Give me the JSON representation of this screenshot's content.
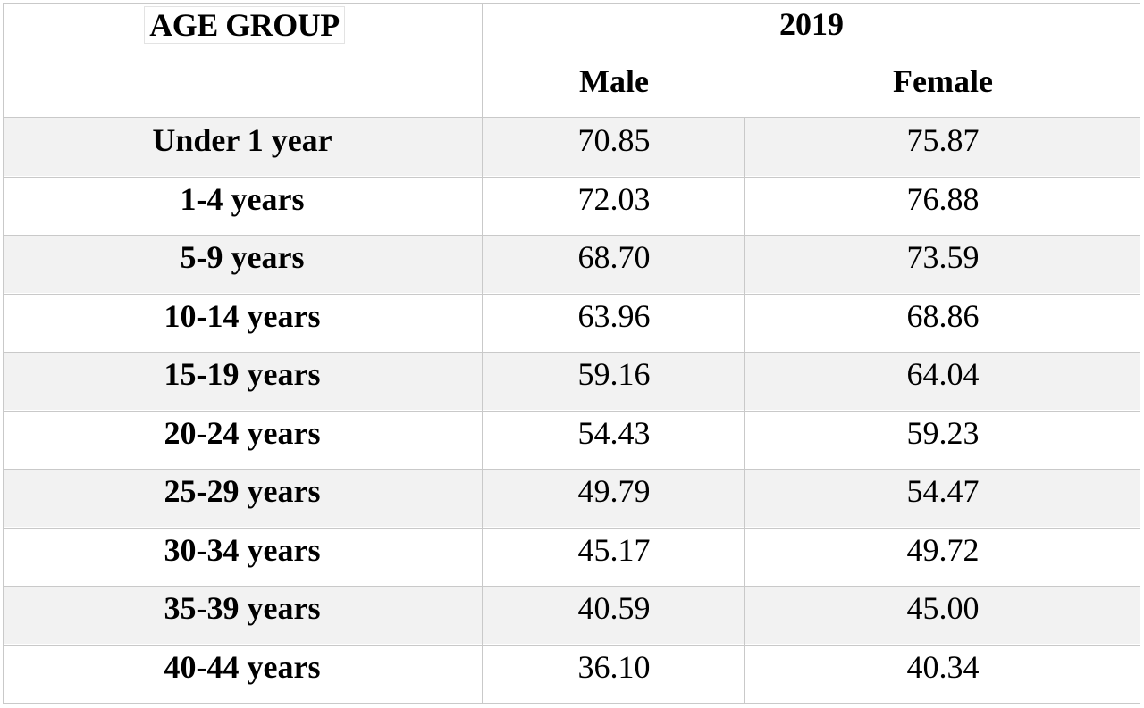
{
  "table": {
    "age_group_header": "AGE GROUP",
    "year_header": "2019",
    "male_header": "Male",
    "female_header": "Female",
    "rows": [
      {
        "age": "Under 1 year",
        "male": "70.85",
        "female": "75.87"
      },
      {
        "age": "1-4 years",
        "male": "72.03",
        "female": "76.88"
      },
      {
        "age": "5-9 years",
        "male": "68.70",
        "female": "73.59"
      },
      {
        "age": "10-14 years",
        "male": "63.96",
        "female": "68.86"
      },
      {
        "age": "15-19 years",
        "male": "59.16",
        "female": "64.04"
      },
      {
        "age": "20-24 years",
        "male": "54.43",
        "female": "59.23"
      },
      {
        "age": "25-29 years",
        "male": "49.79",
        "female": "54.47"
      },
      {
        "age": "30-34 years",
        "male": "45.17",
        "female": "49.72"
      },
      {
        "age": "35-39 years",
        "male": "40.59",
        "female": "45.00"
      },
      {
        "age": "40-44 years",
        "male": "36.10",
        "female": "40.34"
      }
    ]
  }
}
